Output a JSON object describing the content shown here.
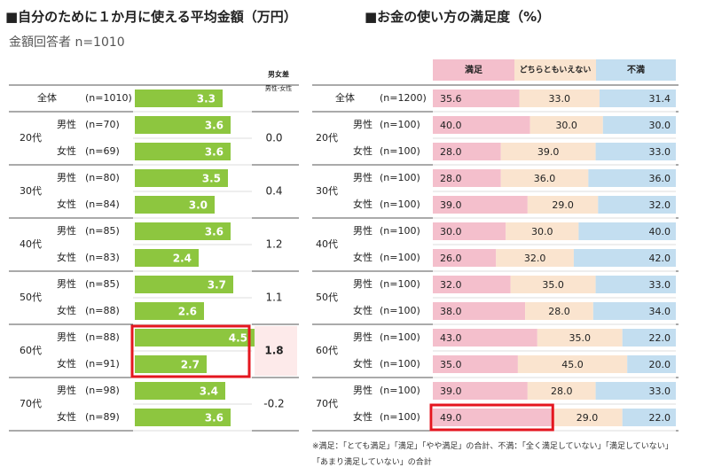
{
  "title_left": "■自分のために１か月に使える平均金額（万円）",
  "subtitle": "金額回答者 n=1010",
  "title_right": "■お金の使い方の満足度（%）",
  "footnote_line1": "※満足：「とても満足」「満足」「やや満足」の合計、不満：「全く満足していない」「満足していない」",
  "footnote_line2": "「あまり満足していない」の合計",
  "colors": {
    "green": "#8dc63f",
    "satisfied": "#f4bfcc",
    "neutral": "#fae4cf",
    "dissatisfied": "#c3def0",
    "highlight": "#e4161f",
    "gap_fill": "#fdeaea",
    "row_line": "#555555",
    "band_line": "#dddddd"
  },
  "chart_data": [
    {
      "type": "bar",
      "title": "自分のために１か月に使える平均金額（万円）",
      "unit": "万円",
      "gap_header": "男女差",
      "gap_subheader": "男性-女性",
      "rows": [
        {
          "age": "全体",
          "gender": "",
          "n": "(n=1010)",
          "value": 3.3
        },
        {
          "age": "20代",
          "gender": "男性",
          "n": "(n=70)",
          "value": 3.6
        },
        {
          "age": "20代",
          "gender": "女性",
          "n": "(n=69)",
          "value": 3.6
        },
        {
          "age": "30代",
          "gender": "男性",
          "n": "(n=80)",
          "value": 3.5
        },
        {
          "age": "30代",
          "gender": "女性",
          "n": "(n=84)",
          "value": 3.0
        },
        {
          "age": "40代",
          "gender": "男性",
          "n": "(n=85)",
          "value": 3.6
        },
        {
          "age": "40代",
          "gender": "女性",
          "n": "(n=83)",
          "value": 2.4
        },
        {
          "age": "50代",
          "gender": "男性",
          "n": "(n=85)",
          "value": 3.7
        },
        {
          "age": "50代",
          "gender": "女性",
          "n": "(n=88)",
          "value": 2.6
        },
        {
          "age": "60代",
          "gender": "男性",
          "n": "(n=88)",
          "value": 4.5
        },
        {
          "age": "60代",
          "gender": "女性",
          "n": "(n=91)",
          "value": 2.7
        },
        {
          "age": "70代",
          "gender": "男性",
          "n": "(n=98)",
          "value": 3.4
        },
        {
          "age": "70代",
          "gender": "女性",
          "n": "(n=89)",
          "value": 3.6
        }
      ],
      "groups": [
        {
          "age": "20代",
          "gap": "0.0"
        },
        {
          "age": "30代",
          "gap": "0.4"
        },
        {
          "age": "40代",
          "gap": "1.2"
        },
        {
          "age": "50代",
          "gap": "1.1"
        },
        {
          "age": "60代",
          "gap": "1.8",
          "highlight": true
        },
        {
          "age": "70代",
          "gap": "-0.2"
        }
      ],
      "highlight_group": "60代"
    },
    {
      "type": "bar",
      "stacked": true,
      "orientation": "horizontal",
      "title": "お金の使い方の満足度（%）",
      "unit": "%",
      "series": [
        {
          "name": "満足",
          "color": "#f4bfcc"
        },
        {
          "name": "どちらともいえない",
          "color": "#fae4cf"
        },
        {
          "name": "不満",
          "color": "#c3def0"
        }
      ],
      "rows": [
        {
          "age": "全体",
          "gender": "",
          "n": "(n=1200)",
          "values": [
            35.6,
            33.0,
            31.4
          ]
        },
        {
          "age": "20代",
          "gender": "男性",
          "n": "(n=100)",
          "values": [
            40.0,
            30.0,
            30.0
          ]
        },
        {
          "age": "20代",
          "gender": "女性",
          "n": "(n=100)",
          "values": [
            28.0,
            39.0,
            33.0
          ]
        },
        {
          "age": "30代",
          "gender": "男性",
          "n": "(n=100)",
          "values": [
            28.0,
            36.0,
            36.0
          ]
        },
        {
          "age": "30代",
          "gender": "女性",
          "n": "(n=100)",
          "values": [
            39.0,
            29.0,
            32.0
          ]
        },
        {
          "age": "40代",
          "gender": "男性",
          "n": "(n=100)",
          "values": [
            30.0,
            30.0,
            40.0
          ]
        },
        {
          "age": "40代",
          "gender": "女性",
          "n": "(n=100)",
          "values": [
            26.0,
            32.0,
            42.0
          ]
        },
        {
          "age": "50代",
          "gender": "男性",
          "n": "(n=100)",
          "values": [
            32.0,
            35.0,
            33.0
          ]
        },
        {
          "age": "50代",
          "gender": "女性",
          "n": "(n=100)",
          "values": [
            38.0,
            28.0,
            34.0
          ]
        },
        {
          "age": "60代",
          "gender": "男性",
          "n": "(n=100)",
          "values": [
            43.0,
            35.0,
            22.0
          ]
        },
        {
          "age": "60代",
          "gender": "女性",
          "n": "(n=100)",
          "values": [
            35.0,
            45.0,
            20.0
          ]
        },
        {
          "age": "70代",
          "gender": "男性",
          "n": "(n=100)",
          "values": [
            39.0,
            28.0,
            33.0
          ]
        },
        {
          "age": "70代",
          "gender": "女性",
          "n": "(n=100)",
          "values": [
            49.0,
            29.0,
            22.0
          ]
        }
      ],
      "highlight": {
        "row": 12,
        "segment": 0
      }
    }
  ]
}
